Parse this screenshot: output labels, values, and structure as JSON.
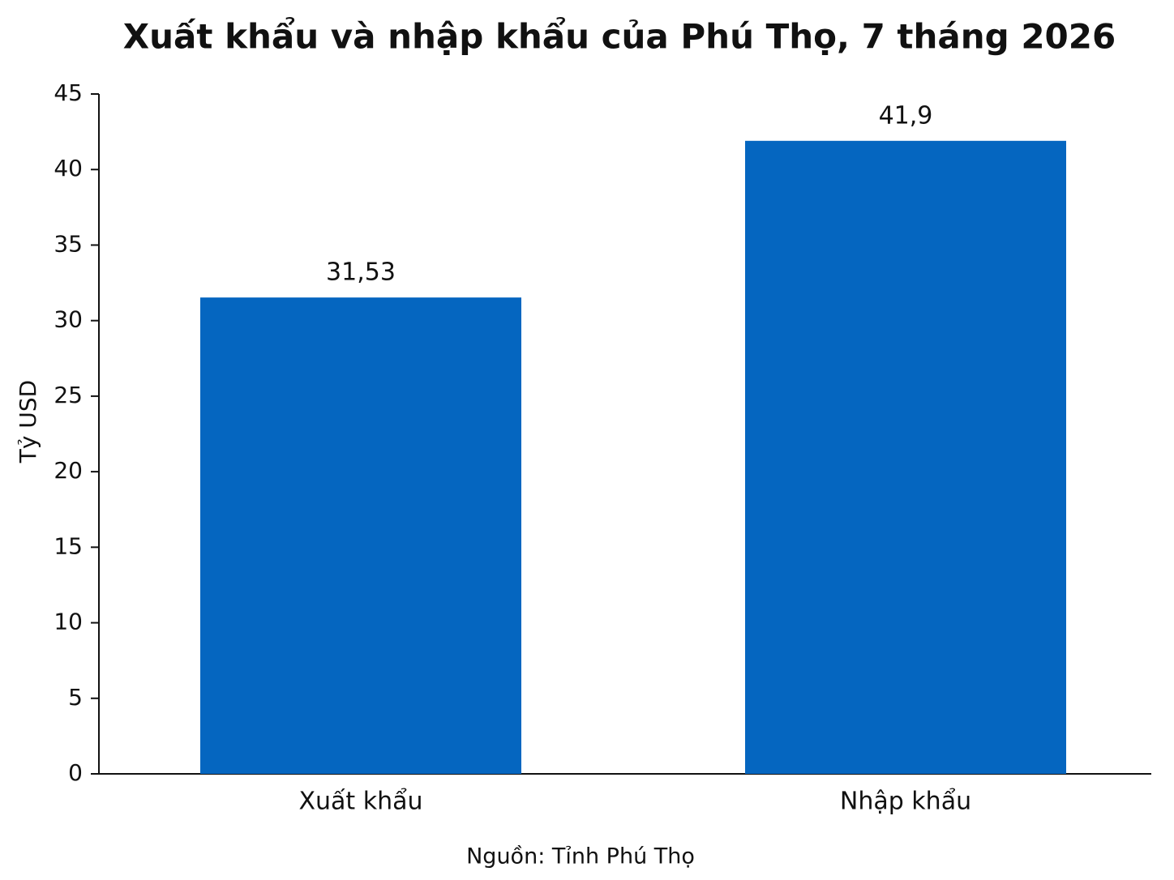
{
  "chart_data": {
    "type": "bar",
    "title": "Xuất khẩu và nhập khẩu của Phú Thọ, 7 tháng 2026",
    "ylabel": "Tỷ USD",
    "source": "Nguồn: Tỉnh Phú Thọ",
    "categories": [
      "Xuất khẩu",
      "Nhập khẩu"
    ],
    "values": [
      31.53,
      41.9
    ],
    "value_labels": [
      "31,53",
      "41,9"
    ],
    "color": "#0566c0",
    "ylim": [
      0,
      45
    ],
    "yticks": [
      0,
      5,
      10,
      15,
      20,
      25,
      30,
      35,
      40,
      45
    ],
    "grid": false
  }
}
